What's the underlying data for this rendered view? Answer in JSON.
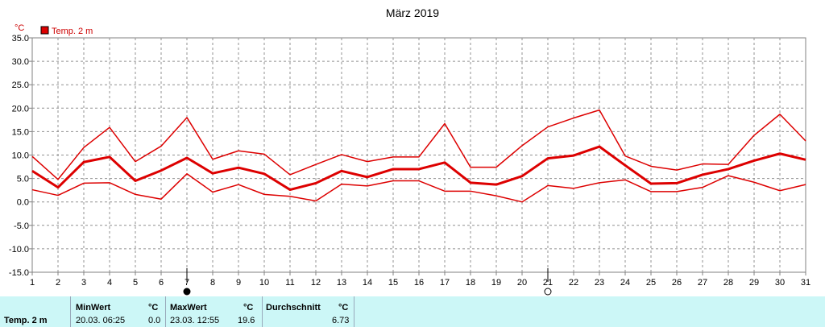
{
  "chart_data": {
    "type": "line",
    "title": "März 2019",
    "ylabel": "°C",
    "ylim": [
      -15,
      35
    ],
    "xlim": [
      1,
      31
    ],
    "y_ticks": [
      "35.0",
      "30.0",
      "25.0",
      "20.0",
      "15.0",
      "10.0",
      "5.0",
      "0.0",
      "-5.0",
      "-10.0",
      "-15.0"
    ],
    "x_ticks": [
      "1",
      "2",
      "3",
      "4",
      "5",
      "6",
      "7",
      "8",
      "9",
      "10",
      "11",
      "12",
      "13",
      "14",
      "15",
      "16",
      "17",
      "18",
      "19",
      "20",
      "21",
      "22",
      "23",
      "24",
      "25",
      "26",
      "27",
      "28",
      "29",
      "30",
      "31"
    ],
    "grid": true,
    "legend": [
      "Temp. 2 m"
    ],
    "series_color": "#dd0000",
    "x": [
      1,
      2,
      3,
      4,
      5,
      6,
      7,
      8,
      9,
      10,
      11,
      12,
      13,
      14,
      15,
      16,
      17,
      18,
      19,
      20,
      21,
      22,
      23,
      24,
      25,
      26,
      27,
      28,
      29,
      30,
      31
    ],
    "series": [
      {
        "values": [
          9.7,
          4.8,
          11.6,
          15.9,
          8.6,
          11.9,
          18.0,
          9.1,
          10.9,
          10.2,
          5.8,
          8.0,
          10.1,
          8.6,
          9.6,
          9.6,
          16.7,
          7.4,
          7.4,
          12.0,
          16.0,
          17.9,
          19.6,
          9.8,
          7.6,
          6.8,
          8.1,
          8.0,
          14.2,
          18.7,
          13.0
        ]
      },
      {
        "values": [
          6.6,
          3.1,
          8.5,
          9.6,
          4.5,
          6.7,
          9.4,
          6.1,
          7.3,
          6.0,
          2.6,
          4.0,
          6.6,
          5.3,
          7.0,
          7.0,
          8.4,
          4.1,
          3.7,
          5.5,
          9.3,
          9.9,
          11.8,
          7.8,
          3.9,
          4.0,
          5.8,
          7.0,
          8.8,
          10.3,
          9.0
        ]
      },
      {
        "values": [
          2.6,
          1.4,
          4.0,
          4.1,
          1.6,
          0.6,
          6.0,
          2.1,
          3.7,
          1.6,
          1.2,
          0.2,
          3.8,
          3.4,
          4.5,
          4.5,
          2.3,
          2.3,
          1.3,
          0.0,
          3.5,
          2.9,
          4.1,
          4.7,
          2.2,
          2.2,
          3.1,
          5.6,
          4.2,
          2.4,
          3.7
        ]
      }
    ],
    "markers": {
      "new_moon_day": 7,
      "full_moon_day": 21
    }
  },
  "stats": {
    "row_label": "Temp. 2 m",
    "min_label": "MinWert",
    "min_unit": "°C",
    "min_datetime": "20.03.  06:25",
    "min_value": "0.0",
    "max_label": "MaxWert",
    "max_unit": "°C",
    "max_datetime": "23.03.  12:55",
    "max_value": "19.6",
    "avg_label": "Durchschnitt",
    "avg_unit": "°C",
    "avg_value": "6.73"
  }
}
